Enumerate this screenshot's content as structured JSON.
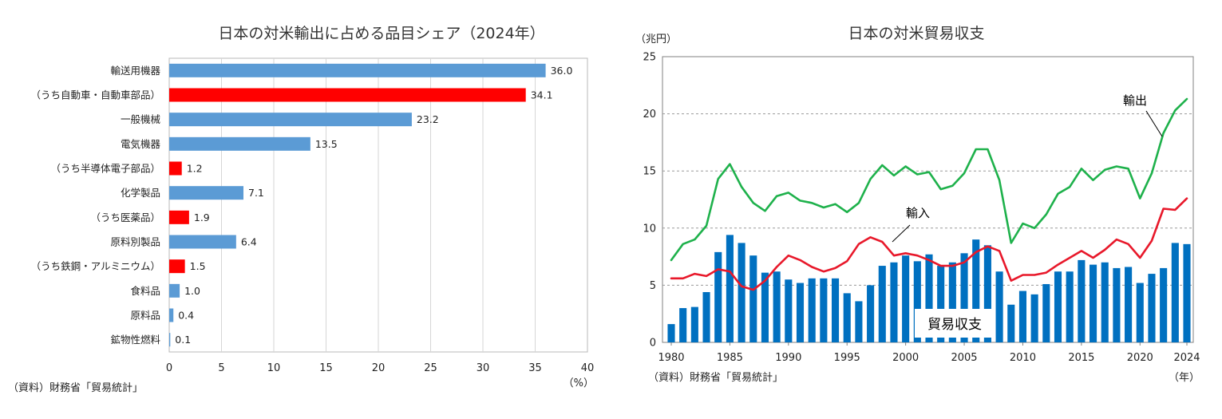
{
  "colors": {
    "bar_blue": "#5B9BD5",
    "bar_red": "#FF0000",
    "column_blue": "#0070C0",
    "export_green": "#1EB14B",
    "import_red": "#E8182A",
    "grid": "#999999",
    "axis": "#808080"
  },
  "chart_data": [
    {
      "type": "bar",
      "orientation": "horizontal",
      "title": "日本の対米輸出に占める品目シェア（2024年）",
      "x_unit": "（%）",
      "source": "（資料）財務省「貿易統計」",
      "xlim": [
        0,
        40
      ],
      "x_ticks": [
        "0",
        "5",
        "10",
        "15",
        "20",
        "25",
        "30",
        "35",
        "40"
      ],
      "grid": "vertical",
      "categories": [
        "輸送用機器",
        "（うち自動車・自動車部品）",
        "一般機械",
        "電気機器",
        "（うち半導体電子部品）",
        "化学製品",
        "（うち医薬品）",
        "原料別製品",
        "（うち鉄鋼・アルミニウム）",
        "食料品",
        "原料品",
        "鉱物性燃料"
      ],
      "values": [
        36.0,
        34.1,
        23.2,
        13.5,
        1.2,
        7.1,
        1.9,
        6.4,
        1.5,
        1.0,
        0.4,
        0.1
      ],
      "value_labels": [
        "36.0",
        "34.1",
        "23.2",
        "13.5",
        "1.2",
        "7.1",
        "1.9",
        "6.4",
        "1.5",
        "1.0",
        "0.4",
        "0.1"
      ],
      "highlight": [
        false,
        true,
        false,
        false,
        true,
        false,
        true,
        false,
        true,
        false,
        false,
        false
      ]
    },
    {
      "type": "bar+line",
      "title": "日本の対米貿易収支",
      "y_unit": "（兆円）",
      "x_unit": "（年）",
      "source": "（資料）財務省「貿易統計」",
      "ylim": [
        0,
        25
      ],
      "y_ticks": [
        "0",
        "5",
        "10",
        "15",
        "20",
        "25"
      ],
      "x_tick_labels": [
        "1980",
        "1985",
        "1990",
        "1995",
        "2000",
        "2005",
        "2010",
        "2015",
        "2020",
        "2024"
      ],
      "grid": "horizontal dashed",
      "x": [
        1980,
        1981,
        1982,
        1983,
        1984,
        1985,
        1986,
        1987,
        1988,
        1989,
        1990,
        1991,
        1992,
        1993,
        1994,
        1995,
        1996,
        1997,
        1998,
        1999,
        2000,
        2001,
        2002,
        2003,
        2004,
        2005,
        2006,
        2007,
        2008,
        2009,
        2010,
        2011,
        2012,
        2013,
        2014,
        2015,
        2016,
        2017,
        2018,
        2019,
        2020,
        2021,
        2022,
        2023,
        2024
      ],
      "series": [
        {
          "name": "貿易収支",
          "kind": "bar",
          "values": [
            1.6,
            3.0,
            3.1,
            4.4,
            7.9,
            9.4,
            8.7,
            7.6,
            6.1,
            6.2,
            5.5,
            5.2,
            5.6,
            5.6,
            5.6,
            4.3,
            3.6,
            5.0,
            6.7,
            7.0,
            7.6,
            7.1,
            7.7,
            6.7,
            7.0,
            7.8,
            9.0,
            8.5,
            6.2,
            3.3,
            4.5,
            4.2,
            5.1,
            6.2,
            6.2,
            7.2,
            6.8,
            7.0,
            6.5,
            6.6,
            5.2,
            6.0,
            6.5,
            8.7,
            8.6
          ]
        },
        {
          "name": "輸出",
          "kind": "line",
          "values": [
            7.2,
            8.6,
            9.0,
            10.2,
            14.3,
            15.6,
            13.6,
            12.2,
            11.5,
            12.8,
            13.1,
            12.4,
            12.2,
            11.8,
            12.1,
            11.4,
            12.2,
            14.3,
            15.5,
            14.6,
            15.4,
            14.7,
            14.9,
            13.4,
            13.7,
            14.8,
            16.9,
            16.9,
            14.2,
            8.7,
            10.4,
            10.0,
            11.2,
            13.0,
            13.6,
            15.2,
            14.2,
            15.1,
            15.4,
            15.2,
            12.6,
            14.8,
            18.3,
            20.3,
            21.3
          ]
        },
        {
          "name": "輸入",
          "kind": "line",
          "values": [
            5.6,
            5.6,
            6.0,
            5.8,
            6.4,
            6.2,
            4.9,
            4.6,
            5.4,
            6.6,
            7.6,
            7.2,
            6.6,
            6.2,
            6.5,
            7.1,
            8.6,
            9.2,
            8.8,
            7.6,
            7.8,
            7.6,
            7.2,
            6.7,
            6.7,
            7.0,
            7.9,
            8.4,
            8.0,
            5.4,
            5.9,
            5.9,
            6.1,
            6.8,
            7.4,
            8.0,
            7.4,
            8.1,
            9.0,
            8.6,
            7.4,
            8.9,
            11.7,
            11.6,
            12.6
          ]
        }
      ],
      "annotations": [
        "輸出",
        "輸入",
        "貿易収支"
      ]
    }
  ]
}
